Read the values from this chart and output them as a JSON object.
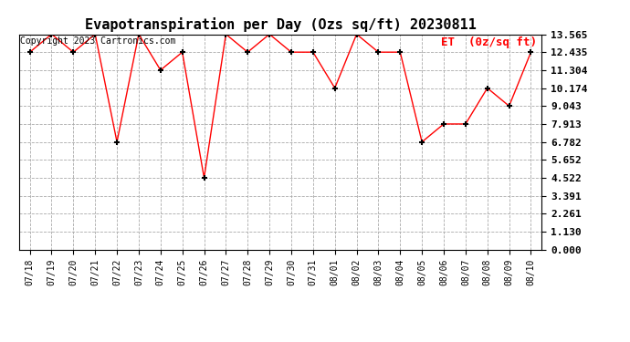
{
  "title": "Evapotranspiration per Day (Ozs sq/ft) 20230811",
  "legend_label": "ET  (0z/sq ft)",
  "copyright": "Copyright 2023 Cartronics.com",
  "x_labels": [
    "07/18",
    "07/19",
    "07/20",
    "07/21",
    "07/22",
    "07/23",
    "07/24",
    "07/25",
    "07/26",
    "07/27",
    "07/28",
    "07/29",
    "07/30",
    "07/31",
    "08/01",
    "08/02",
    "08/03",
    "08/04",
    "08/05",
    "08/06",
    "08/07",
    "08/08",
    "08/09",
    "08/10"
  ],
  "y_values": [
    12.435,
    13.565,
    12.435,
    13.565,
    6.782,
    13.565,
    11.304,
    12.435,
    4.522,
    13.565,
    12.435,
    13.565,
    12.435,
    12.435,
    10.174,
    13.565,
    12.435,
    12.435,
    6.782,
    7.913,
    7.913,
    10.174,
    9.043,
    12.435
  ],
  "yticks": [
    0.0,
    1.13,
    2.261,
    3.391,
    4.522,
    5.652,
    6.782,
    7.913,
    9.043,
    10.174,
    11.304,
    12.435,
    13.565
  ],
  "ylim": [
    0.0,
    13.565
  ],
  "line_color": "red",
  "marker": "+",
  "marker_size": 5,
  "marker_edge_width": 1.5,
  "background_color": "#ffffff",
  "grid_color": "#aaaaaa",
  "title_fontsize": 11,
  "legend_color": "red",
  "legend_fontsize": 9,
  "copyright_color": "#000000",
  "copyright_fontsize": 7,
  "ytick_fontsize": 8,
  "xtick_fontsize": 7
}
